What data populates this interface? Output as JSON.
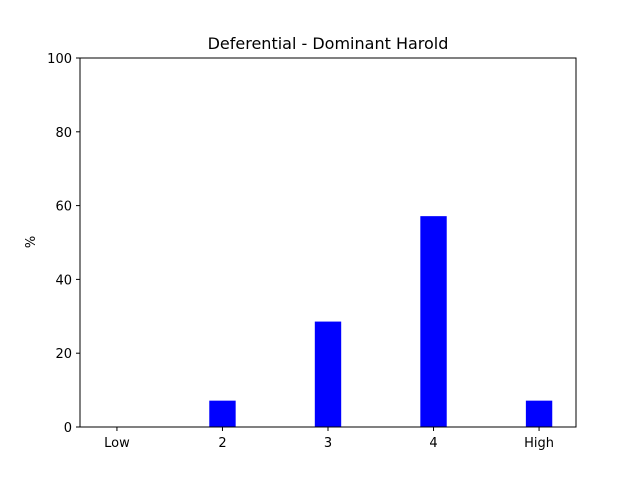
{
  "chart_data": {
    "type": "bar",
    "title": "Deferential - Dominant Harold",
    "xlabel": "",
    "ylabel": "%",
    "categories": [
      "Low",
      "2",
      "3",
      "4",
      "High"
    ],
    "values": [
      0,
      7.14,
      28.57,
      57.14,
      7.14
    ],
    "ylim": [
      0,
      100
    ],
    "yticks": [
      0,
      20,
      40,
      60,
      80,
      100
    ],
    "bar_color": "#0000ff",
    "grid": false,
    "legend": "none"
  }
}
